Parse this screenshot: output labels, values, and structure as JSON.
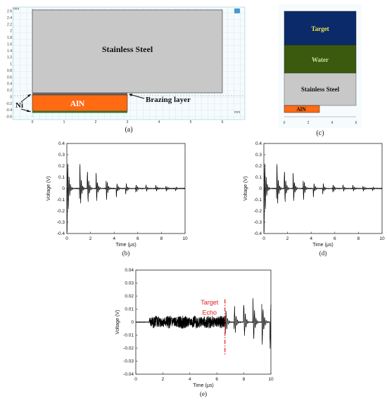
{
  "panel_a": {
    "unit_label": "mm",
    "y_ticks": [
      "2.6",
      "2.4",
      "2.2",
      "2",
      "1.8",
      "1.6",
      "1.4",
      "1.2",
      "1",
      "0.8",
      "0.6",
      "0.4",
      "0.2",
      "0",
      "-0.2",
      "-0.4",
      "-0.6"
    ],
    "x_ticks": [
      "0",
      "1",
      "2",
      "3",
      "4",
      "5",
      "6"
    ],
    "steel_label": "Stainless Steel",
    "aln_label": "AlN",
    "ni_label": "Ni",
    "brazing_label": "Brazing layer",
    "caption": "(a)",
    "colors": {
      "steel": "#c8c8c8",
      "aln": "#ff6a13",
      "grid": "#b8dde8",
      "ni": "#2a7a2a"
    }
  },
  "panel_c": {
    "layers": [
      "Target",
      "Water",
      "Stainless Steel",
      "AlN"
    ],
    "x_ticks": [
      "0",
      "2",
      "4",
      "6"
    ],
    "caption": "(c)",
    "colors": {
      "target": "#0a2a6a",
      "water": "#3b5a0e",
      "steel": "#c8c8c8",
      "aln": "#ff6a13",
      "target_text": "#f0e64a",
      "water_text": "#cfe0a0"
    }
  },
  "chart_data": [
    {
      "type": "line",
      "caption": "(b)",
      "xlabel": "Time (μs)",
      "ylabel": "Voltage (V)",
      "xlim": [
        0,
        10
      ],
      "ylim": [
        -0.4,
        0.4
      ],
      "x_ticks": [
        "0",
        "2",
        "4",
        "6",
        "8",
        "10"
      ],
      "y_ticks": [
        "0.4",
        "0.3",
        "0.2",
        "0.1",
        "0",
        "-0.1",
        "-0.2",
        "-0.3",
        "-0.4"
      ],
      "echo_times": [
        0.05,
        1.1,
        1.75,
        2.5,
        3.35,
        4.2,
        5.0,
        5.85,
        6.7,
        7.55,
        8.4,
        9.2
      ],
      "echo_amplitudes": [
        0.4,
        0.27,
        0.21,
        0.16,
        0.12,
        0.08,
        0.06,
        0.05,
        0.04,
        0.035,
        0.03,
        0.025
      ]
    },
    {
      "type": "line",
      "caption": "(d)",
      "xlabel": "Time (μs)",
      "ylabel": "Voltage (V)",
      "xlim": [
        0,
        10
      ],
      "ylim": [
        -0.4,
        0.4
      ],
      "x_ticks": [
        "0",
        "2",
        "4",
        "6",
        "8",
        "10"
      ],
      "y_ticks": [
        "0.4",
        "0.3",
        "0.2",
        "0.1",
        "0",
        "-0.1",
        "-0.2",
        "-0.3",
        "-0.4"
      ],
      "echo_times": [
        0.05,
        1.1,
        1.75,
        2.5,
        3.35,
        4.2,
        5.0,
        5.85,
        6.7,
        7.55,
        8.4,
        9.2
      ],
      "echo_amplitudes": [
        0.4,
        0.27,
        0.21,
        0.16,
        0.12,
        0.08,
        0.06,
        0.05,
        0.04,
        0.035,
        0.03,
        0.025
      ]
    },
    {
      "type": "line",
      "caption": "(e)",
      "xlabel": "Time (μs)",
      "ylabel": "Voltage (V)",
      "xlim": [
        0,
        10
      ],
      "ylim": [
        -0.04,
        0.04
      ],
      "x_ticks": [
        "0",
        "2",
        "4",
        "6",
        "8",
        "10"
      ],
      "y_ticks": [
        "0.04",
        "0.03",
        "0.02",
        "0.01",
        "0",
        "-0.01",
        "-0.02",
        "-0.03",
        "-0.04"
      ],
      "noise_band": [
        1.0,
        6.6
      ],
      "echo_times": [
        6.65,
        7.3,
        8.0,
        8.7,
        9.35,
        9.95
      ],
      "echo_amplitudes": [
        0.012,
        0.015,
        0.018,
        0.02,
        0.022,
        0.023
      ],
      "annotation": {
        "text_line1": "Target",
        "text_line2": "Echo",
        "x": 6.6,
        "color": "#e02020"
      }
    }
  ]
}
